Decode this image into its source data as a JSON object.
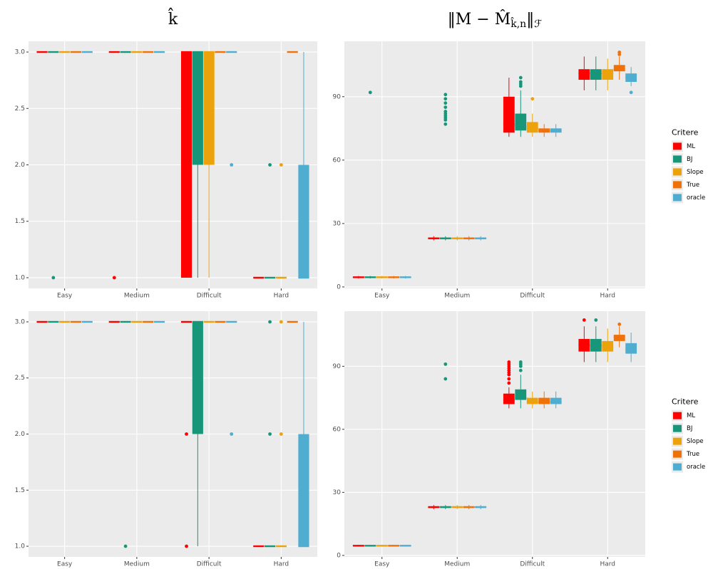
{
  "chart_data": [
    {
      "type": "box",
      "title": "k̂",
      "categories": [
        "Easy",
        "Medium",
        "Difficult",
        "Hard"
      ],
      "ylim": [
        0.905,
        3.095
      ],
      "yticks": [
        {
          "value": 1,
          "label": "1.0"
        },
        {
          "value": 1.5,
          "label": "1.5"
        },
        {
          "value": 2,
          "label": "2.0"
        },
        {
          "value": 2.5,
          "label": "2.5"
        },
        {
          "value": 3,
          "label": "3.0"
        }
      ],
      "grid": true,
      "series": [
        {
          "name": "ML",
          "color": "#fe0000",
          "values": [
            {
              "min": 3,
              "q1": 3,
              "median": 3,
              "q3": 3,
              "max": 3
            },
            {
              "min": 3,
              "q1": 3,
              "median": 3,
              "q3": 3,
              "max": 3,
              "outliers": [
                1
              ]
            },
            {
              "min": 1,
              "q1": 1,
              "median": 3,
              "q3": 3,
              "max": 3
            },
            {
              "min": 1,
              "q1": 1,
              "median": 1,
              "q3": 1,
              "max": 1
            }
          ]
        },
        {
          "name": "BJ",
          "color": "#17967a",
          "values": [
            {
              "min": 3,
              "q1": 3,
              "median": 3,
              "q3": 3,
              "max": 3,
              "outliers": [
                1
              ]
            },
            {
              "min": 3,
              "q1": 3,
              "median": 3,
              "q3": 3,
              "max": 3
            },
            {
              "min": 1,
              "q1": 2,
              "median": 3,
              "q3": 3,
              "max": 3
            },
            {
              "min": 1,
              "q1": 1,
              "median": 1,
              "q3": 1,
              "max": 1,
              "outliers": [
                2
              ]
            }
          ]
        },
        {
          "name": "Slope",
          "color": "#eca20b",
          "values": [
            {
              "min": 3,
              "q1": 3,
              "median": 3,
              "q3": 3,
              "max": 3
            },
            {
              "min": 3,
              "q1": 3,
              "median": 3,
              "q3": 3,
              "max": 3
            },
            {
              "min": 1,
              "q1": 2,
              "median": 3,
              "q3": 3,
              "max": 3
            },
            {
              "min": 1,
              "q1": 1,
              "median": 1,
              "q3": 1,
              "max": 1,
              "outliers": [
                2
              ]
            }
          ]
        },
        {
          "name": "True",
          "color": "#f17109",
          "values": [
            {
              "min": 3,
              "q1": 3,
              "median": 3,
              "q3": 3,
              "max": 3
            },
            {
              "min": 3,
              "q1": 3,
              "median": 3,
              "q3": 3,
              "max": 3
            },
            {
              "min": 3,
              "q1": 3,
              "median": 3,
              "q3": 3,
              "max": 3
            },
            {
              "min": 3,
              "q1": 3,
              "median": 3,
              "q3": 3,
              "max": 3
            }
          ]
        },
        {
          "name": "oracle",
          "color": "#4fadd0",
          "values": [
            {
              "min": 3,
              "q1": 3,
              "median": 3,
              "q3": 3,
              "max": 3
            },
            {
              "min": 3,
              "q1": 3,
              "median": 3,
              "q3": 3,
              "max": 3
            },
            {
              "min": 3,
              "q1": 3,
              "median": 3,
              "q3": 3,
              "max": 3,
              "outliers": [
                2
              ]
            },
            {
              "min": 1,
              "q1": 1,
              "median": 1,
              "q3": 2,
              "max": 3
            }
          ]
        }
      ]
    },
    {
      "type": "box",
      "title": "‖M − M̂",
      "title_sub": "k̂,n",
      "title_end": "‖",
      "title_end_sub": "ℱ",
      "categories": [
        "Easy",
        "Medium",
        "Difficult",
        "Hard"
      ],
      "ylim": [
        -0.7,
        116.2
      ],
      "yticks": [
        0,
        30,
        60,
        90
      ],
      "grid": true,
      "legend_title": "Critere",
      "legend": "right",
      "series": [
        {
          "name": "ML",
          "color": "#fe0000",
          "values": [
            {
              "min": 4,
              "q1": 4.3,
              "median": 4.6,
              "q3": 4.9,
              "max": 5.2
            },
            {
              "min": 22,
              "q1": 22.6,
              "median": 23,
              "q3": 23.4,
              "max": 24
            },
            {
              "min": 71,
              "q1": 73,
              "median": 77,
              "q3": 90,
              "max": 99
            },
            {
              "min": 93,
              "q1": 98,
              "median": 101,
              "q3": 103,
              "max": 109
            }
          ]
        },
        {
          "name": "BJ",
          "color": "#17967a",
          "values": [
            {
              "min": 4,
              "q1": 4.3,
              "median": 4.6,
              "q3": 4.9,
              "max": 5.2,
              "outliers": [
                92
              ]
            },
            {
              "min": 22,
              "q1": 22.6,
              "median": 23,
              "q3": 23.4,
              "max": 24,
              "outliers": [
                77,
                79,
                80,
                81,
                82,
                83,
                85,
                87,
                89,
                91
              ]
            },
            {
              "min": 71,
              "q1": 74,
              "median": 76,
              "q3": 82,
              "max": 93,
              "outliers": [
                95,
                96,
                97,
                99
              ]
            },
            {
              "min": 93,
              "q1": 98,
              "median": 101,
              "q3": 103,
              "max": 109
            }
          ]
        },
        {
          "name": "Slope",
          "color": "#eca20b",
          "values": [
            {
              "min": 4,
              "q1": 4.3,
              "median": 4.6,
              "q3": 4.9,
              "max": 5.2
            },
            {
              "min": 22,
              "q1": 22.6,
              "median": 23,
              "q3": 23.4,
              "max": 24
            },
            {
              "min": 71,
              "q1": 73,
              "median": 75,
              "q3": 78,
              "max": 82,
              "outliers": [
                89
              ]
            },
            {
              "min": 93,
              "q1": 98,
              "median": 101,
              "q3": 103,
              "max": 108
            }
          ]
        },
        {
          "name": "True",
          "color": "#f17109",
          "values": [
            {
              "min": 4,
              "q1": 4.3,
              "median": 4.6,
              "q3": 4.9,
              "max": 5.2
            },
            {
              "min": 22,
              "q1": 22.6,
              "median": 23,
              "q3": 23.4,
              "max": 24
            },
            {
              "min": 71,
              "q1": 73,
              "median": 74,
              "q3": 75,
              "max": 77
            },
            {
              "min": 98,
              "q1": 102,
              "median": 103,
              "q3": 105,
              "max": 109,
              "outliers": [
                110,
                111
              ]
            }
          ]
        },
        {
          "name": "oracle",
          "color": "#4fadd0",
          "values": [
            {
              "min": 4,
              "q1": 4.3,
              "median": 4.6,
              "q3": 4.9,
              "max": 5.2
            },
            {
              "min": 22,
              "q1": 22.6,
              "median": 23,
              "q3": 23.4,
              "max": 24
            },
            {
              "min": 71,
              "q1": 73,
              "median": 74,
              "q3": 75,
              "max": 77
            },
            {
              "min": 95,
              "q1": 97,
              "median": 99,
              "q3": 101,
              "max": 104,
              "outliers": [
                92
              ]
            }
          ]
        }
      ]
    },
    {
      "type": "box",
      "categories": [
        "Easy",
        "Medium",
        "Difficult",
        "Hard"
      ],
      "ylim": [
        0.905,
        3.095
      ],
      "yticks": [
        {
          "value": 1,
          "label": "1.0"
        },
        {
          "value": 1.5,
          "label": "1.5"
        },
        {
          "value": 2,
          "label": "2.0"
        },
        {
          "value": 2.5,
          "label": "2.5"
        },
        {
          "value": 3,
          "label": "3.0"
        }
      ],
      "grid": true,
      "series": [
        {
          "name": "ML",
          "color": "#fe0000",
          "values": [
            {
              "min": 3,
              "q1": 3,
              "median": 3,
              "q3": 3,
              "max": 3
            },
            {
              "min": 3,
              "q1": 3,
              "median": 3,
              "q3": 3,
              "max": 3
            },
            {
              "min": 3,
              "q1": 3,
              "median": 3,
              "q3": 3,
              "max": 3,
              "outliers": [
                2,
                1
              ]
            },
            {
              "min": 1,
              "q1": 1,
              "median": 1,
              "q3": 1,
              "max": 1
            }
          ]
        },
        {
          "name": "BJ",
          "color": "#17967a",
          "values": [
            {
              "min": 3,
              "q1": 3,
              "median": 3,
              "q3": 3,
              "max": 3
            },
            {
              "min": 3,
              "q1": 3,
              "median": 3,
              "q3": 3,
              "max": 3,
              "outliers": [
                1
              ]
            },
            {
              "min": 1,
              "q1": 2,
              "median": 3,
              "q3": 3,
              "max": 3
            },
            {
              "min": 1,
              "q1": 1,
              "median": 1,
              "q3": 1,
              "max": 1,
              "outliers": [
                2,
                3
              ]
            }
          ]
        },
        {
          "name": "Slope",
          "color": "#eca20b",
          "values": [
            {
              "min": 3,
              "q1": 3,
              "median": 3,
              "q3": 3,
              "max": 3
            },
            {
              "min": 3,
              "q1": 3,
              "median": 3,
              "q3": 3,
              "max": 3
            },
            {
              "min": 3,
              "q1": 3,
              "median": 3,
              "q3": 3,
              "max": 3
            },
            {
              "min": 1,
              "q1": 1,
              "median": 1,
              "q3": 1,
              "max": 1,
              "outliers": [
                2,
                3
              ]
            }
          ]
        },
        {
          "name": "True",
          "color": "#f17109",
          "values": [
            {
              "min": 3,
              "q1": 3,
              "median": 3,
              "q3": 3,
              "max": 3
            },
            {
              "min": 3,
              "q1": 3,
              "median": 3,
              "q3": 3,
              "max": 3
            },
            {
              "min": 3,
              "q1": 3,
              "median": 3,
              "q3": 3,
              "max": 3
            },
            {
              "min": 3,
              "q1": 3,
              "median": 3,
              "q3": 3,
              "max": 3
            }
          ]
        },
        {
          "name": "oracle",
          "color": "#4fadd0",
          "values": [
            {
              "min": 3,
              "q1": 3,
              "median": 3,
              "q3": 3,
              "max": 3
            },
            {
              "min": 3,
              "q1": 3,
              "median": 3,
              "q3": 3,
              "max": 3
            },
            {
              "min": 3,
              "q1": 3,
              "median": 3,
              "q3": 3,
              "max": 3,
              "outliers": [
                2
              ]
            },
            {
              "min": 1,
              "q1": 1,
              "median": 1,
              "q3": 2,
              "max": 3
            }
          ]
        }
      ]
    },
    {
      "type": "box",
      "categories": [
        "Easy",
        "Medium",
        "Difficult",
        "Hard"
      ],
      "ylim": [
        -0.7,
        116.2
      ],
      "yticks": [
        0,
        30,
        60,
        90
      ],
      "grid": true,
      "legend_title": "Critere",
      "legend": "right",
      "series": [
        {
          "name": "ML",
          "color": "#fe0000",
          "values": [
            {
              "min": 4.2,
              "q1": 4.4,
              "median": 4.6,
              "q3": 4.8,
              "max": 5
            },
            {
              "min": 22,
              "q1": 22.6,
              "median": 23,
              "q3": 23.4,
              "max": 24
            },
            {
              "min": 70,
              "q1": 72,
              "median": 74,
              "q3": 77,
              "max": 80,
              "outliers": [
                82,
                84,
                86,
                87,
                88,
                89,
                90,
                91,
                92
              ]
            },
            {
              "min": 92,
              "q1": 97,
              "median": 100,
              "q3": 103,
              "max": 109,
              "outliers": [
                112
              ]
            }
          ]
        },
        {
          "name": "BJ",
          "color": "#17967a",
          "values": [
            {
              "min": 4.2,
              "q1": 4.4,
              "median": 4.6,
              "q3": 4.8,
              "max": 5
            },
            {
              "min": 22,
              "q1": 22.6,
              "median": 23,
              "q3": 23.4,
              "max": 24,
              "outliers": [
                84,
                91
              ]
            },
            {
              "min": 70,
              "q1": 74,
              "median": 75,
              "q3": 79,
              "max": 86,
              "outliers": [
                88,
                90,
                91,
                92
              ]
            },
            {
              "min": 92,
              "q1": 97,
              "median": 100,
              "q3": 103,
              "max": 109,
              "outliers": [
                112
              ]
            }
          ]
        },
        {
          "name": "Slope",
          "color": "#eca20b",
          "values": [
            {
              "min": 4.2,
              "q1": 4.4,
              "median": 4.6,
              "q3": 4.8,
              "max": 5
            },
            {
              "min": 22,
              "q1": 22.6,
              "median": 23,
              "q3": 23.4,
              "max": 24
            },
            {
              "min": 70,
              "q1": 72,
              "median": 73,
              "q3": 75,
              "max": 78
            },
            {
              "min": 92,
              "q1": 97,
              "median": 99,
              "q3": 102,
              "max": 108
            }
          ]
        },
        {
          "name": "True",
          "color": "#f17109",
          "values": [
            {
              "min": 4.2,
              "q1": 4.4,
              "median": 4.6,
              "q3": 4.8,
              "max": 5
            },
            {
              "min": 22,
              "q1": 22.6,
              "median": 23,
              "q3": 23.4,
              "max": 24
            },
            {
              "min": 70,
              "q1": 72,
              "median": 73,
              "q3": 75,
              "max": 78
            },
            {
              "min": 99,
              "q1": 102,
              "median": 104,
              "q3": 105,
              "max": 109,
              "outliers": [
                110
              ]
            }
          ]
        },
        {
          "name": "oracle",
          "color": "#4fadd0",
          "values": [
            {
              "min": 4.2,
              "q1": 4.4,
              "median": 4.6,
              "q3": 4.8,
              "max": 5
            },
            {
              "min": 22,
              "q1": 22.6,
              "median": 23,
              "q3": 23.4,
              "max": 24
            },
            {
              "min": 70,
              "q1": 72,
              "median": 73,
              "q3": 75,
              "max": 78
            },
            {
              "min": 92,
              "q1": 96,
              "median": 98,
              "q3": 101,
              "max": 106
            }
          ]
        }
      ]
    }
  ]
}
